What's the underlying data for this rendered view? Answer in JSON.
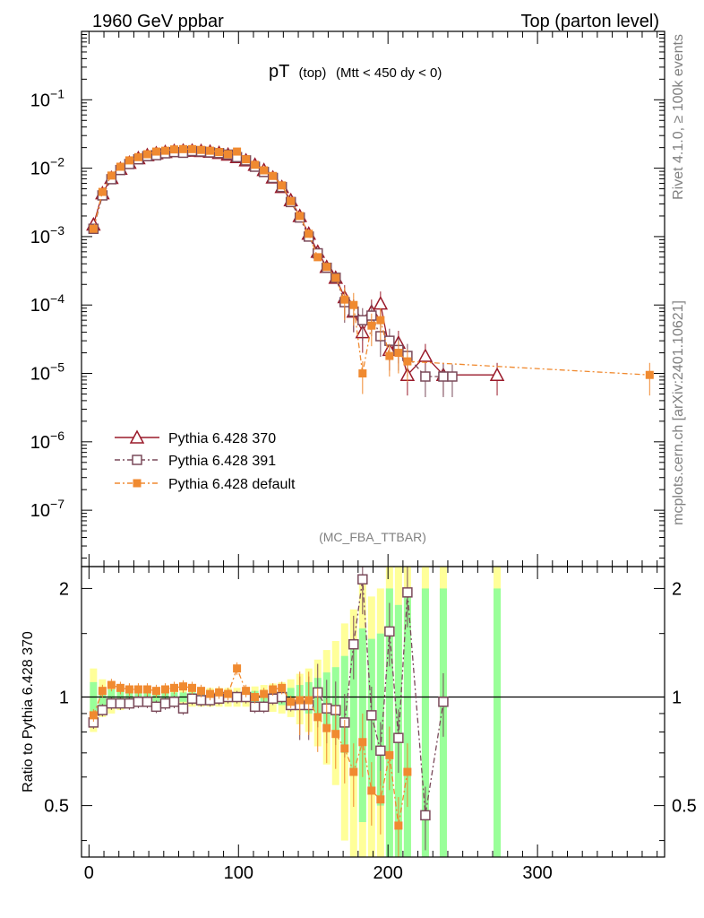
{
  "header": {
    "left": "1960 GeV ppbar",
    "right": "Top (parton level)"
  },
  "side": {
    "rivet": "Rivet 4.1.0, ≥ 100k events",
    "mcplots": "mcplots.cern.ch [arXiv:2401.10621]"
  },
  "watermark": "(MC_FBA_TTBAR)",
  "colors": {
    "p370": "#9a1a2a",
    "p391": "#7a4a5a",
    "pdef": "#f08a30",
    "band_inner": "#99ff99",
    "band_outer": "#ffff99"
  },
  "chart_data": [
    {
      "type": "line",
      "title": "pT (top) (Mtt < 450 dy < 0)",
      "title_main": "pT",
      "title_sub1": "(top)",
      "title_sub2": "(Mtt < 450 dy < 0)",
      "yscale": "log",
      "ylim": [
        1.5e-08,
        1.0
      ],
      "xlim": [
        -5,
        385
      ],
      "yticks": [
        {
          "value": 1e-07,
          "base": "10",
          "exp": "−7"
        },
        {
          "value": 1e-06,
          "base": "10",
          "exp": "−6"
        },
        {
          "value": 1e-05,
          "base": "10",
          "exp": "−5"
        },
        {
          "value": 0.0001,
          "base": "10",
          "exp": "−4"
        },
        {
          "value": 0.001,
          "base": "10",
          "exp": "−3"
        },
        {
          "value": 0.01,
          "base": "10",
          "exp": "−2"
        },
        {
          "value": 0.1,
          "base": "10",
          "exp": "−1"
        }
      ],
      "legend_position": "lower-left",
      "series": [
        {
          "name": "Pythia 6.428 370",
          "marker": "triangle",
          "x": [
            3,
            9,
            15,
            21,
            27,
            33,
            39,
            45,
            51,
            57,
            63,
            69,
            75,
            81,
            87,
            93,
            99,
            105,
            111,
            117,
            123,
            129,
            135,
            141,
            147,
            153,
            159,
            165,
            171,
            177,
            183,
            189,
            195,
            201,
            207,
            213,
            225,
            237,
            273
          ],
          "y": [
            0.0015,
            0.0043,
            0.0072,
            0.0098,
            0.012,
            0.014,
            0.0155,
            0.0165,
            0.0172,
            0.0178,
            0.018,
            0.018,
            0.0178,
            0.0174,
            0.0167,
            0.0158,
            0.0145,
            0.013,
            0.0112,
            0.0094,
            0.0073,
            0.0053,
            0.0034,
            0.002,
            0.0011,
            0.0006,
            0.00036,
            0.00025,
            0.00013,
            8e-05,
            4e-05,
            8e-05,
            0.000105,
            2.2e-05,
            2.8e-05,
            9.5e-06,
            1.8e-05,
            9.5e-06,
            9.5e-06
          ]
        },
        {
          "name": "Pythia 6.428 391",
          "marker": "square",
          "x": [
            3,
            9,
            15,
            21,
            27,
            33,
            39,
            45,
            51,
            57,
            63,
            69,
            75,
            81,
            87,
            93,
            99,
            105,
            111,
            117,
            123,
            129,
            135,
            141,
            147,
            153,
            159,
            165,
            171,
            177,
            183,
            189,
            195,
            201,
            207,
            213,
            225,
            237,
            243
          ],
          "y": [
            0.0013,
            0.004,
            0.0069,
            0.0094,
            0.0115,
            0.0135,
            0.015,
            0.0155,
            0.0165,
            0.0172,
            0.0168,
            0.0178,
            0.0175,
            0.017,
            0.0166,
            0.0158,
            0.0145,
            0.013,
            0.0105,
            0.0088,
            0.0072,
            0.0053,
            0.0032,
            0.0019,
            0.001,
            0.00057,
            0.00035,
            0.00025,
            0.00011,
            8e-05,
            6e-05,
            7e-05,
            3.5e-05,
            3e-05,
            2.2e-05,
            1.8e-05,
            9e-06,
            9e-06,
            9e-06
          ]
        },
        {
          "name": "Pythia 6.428 default",
          "marker": "filled-square",
          "x": [
            3,
            9,
            15,
            21,
            27,
            33,
            39,
            45,
            51,
            57,
            63,
            69,
            75,
            81,
            87,
            93,
            99,
            105,
            111,
            117,
            123,
            129,
            135,
            141,
            147,
            153,
            159,
            165,
            171,
            177,
            183,
            189,
            195,
            201,
            207,
            213,
            375
          ],
          "y": [
            0.0013,
            0.0045,
            0.0078,
            0.0105,
            0.013,
            0.0145,
            0.016,
            0.0175,
            0.018,
            0.0188,
            0.019,
            0.019,
            0.0185,
            0.018,
            0.0172,
            0.016,
            0.0175,
            0.0135,
            0.0112,
            0.0093,
            0.0077,
            0.0056,
            0.0033,
            0.002,
            0.0011,
            0.0005,
            0.00036,
            0.00025,
            0.00012,
            0.0001,
            1e-05,
            5e-05,
            6e-05,
            1.8e-05,
            2e-05,
            1.5e-05,
            9.5e-06
          ]
        }
      ]
    },
    {
      "type": "line",
      "ylabel": "Ratio to Pythia 6.428 370",
      "ylim": [
        0.36,
        2.3
      ],
      "xlim": [
        -5,
        385
      ],
      "yticks": [
        0.5,
        1,
        2
      ],
      "ytick_labels": [
        "0.5",
        "1",
        "2"
      ],
      "xticks": [
        0,
        100,
        200,
        300
      ],
      "xtick_labels": [
        "0",
        "100",
        "200",
        "300"
      ],
      "reference": 1,
      "band": {
        "x": [
          3,
          9,
          15,
          21,
          27,
          33,
          39,
          45,
          51,
          57,
          63,
          69,
          75,
          81,
          87,
          93,
          99,
          105,
          111,
          117,
          123,
          129,
          135,
          141,
          147,
          153,
          159,
          165,
          171,
          177,
          183,
          189,
          195,
          201,
          207,
          213,
          225,
          237,
          273
        ],
        "inner": [
          0.1,
          0.06,
          0.05,
          0.04,
          0.04,
          0.03,
          0.03,
          0.03,
          0.03,
          0.03,
          0.03,
          0.03,
          0.03,
          0.03,
          0.03,
          0.03,
          0.03,
          0.03,
          0.04,
          0.04,
          0.04,
          0.05,
          0.06,
          0.08,
          0.1,
          0.13,
          0.17,
          0.21,
          0.3,
          0.38,
          0.55,
          0.45,
          0.5,
          1.0,
          0.8,
          1.0,
          1.0,
          1.0,
          1.0
        ],
        "outer": [
          0.2,
          0.12,
          0.1,
          0.08,
          0.07,
          0.06,
          0.06,
          0.06,
          0.06,
          0.06,
          0.06,
          0.06,
          0.06,
          0.06,
          0.06,
          0.06,
          0.06,
          0.06,
          0.07,
          0.08,
          0.09,
          0.1,
          0.12,
          0.16,
          0.2,
          0.27,
          0.35,
          0.43,
          0.6,
          0.75,
          1.1,
          0.9,
          1.0,
          2.0,
          1.6,
          2.0,
          2.0,
          2.0,
          2.0
        ]
      },
      "series": [
        {
          "name": "Pythia 6.428 391",
          "marker": "square",
          "x": [
            3,
            9,
            15,
            21,
            27,
            33,
            39,
            45,
            51,
            57,
            63,
            69,
            75,
            81,
            87,
            93,
            99,
            105,
            111,
            117,
            123,
            129,
            135,
            141,
            147,
            153,
            159,
            165,
            171,
            177,
            183,
            189,
            195,
            201,
            207,
            213,
            225,
            237
          ],
          "y": [
            0.85,
            0.92,
            0.96,
            0.96,
            0.96,
            0.97,
            0.97,
            0.94,
            0.96,
            0.97,
            0.93,
            0.99,
            0.98,
            0.98,
            0.99,
            1.0,
            1.0,
            1.0,
            0.94,
            0.94,
            0.99,
            1.0,
            0.95,
            0.95,
            0.95,
            1.03,
            0.93,
            0.92,
            0.85,
            1.4,
            2.12,
            0.89,
            0.71,
            1.52,
            0.77,
            1.95,
            0.47,
            0.97
          ]
        },
        {
          "name": "Pythia 6.428 default",
          "marker": "filled-square",
          "x": [
            3,
            9,
            15,
            21,
            27,
            33,
            39,
            45,
            51,
            57,
            63,
            69,
            75,
            81,
            87,
            93,
            99,
            105,
            111,
            117,
            123,
            129,
            135,
            141,
            147,
            153,
            159,
            165,
            171,
            177,
            183,
            189,
            195,
            201,
            207,
            213
          ],
          "y": [
            0.89,
            1.04,
            1.08,
            1.06,
            1.05,
            1.05,
            1.05,
            1.04,
            1.05,
            1.06,
            1.07,
            1.06,
            1.04,
            1.02,
            1.03,
            1.02,
            1.2,
            1.04,
            1.0,
            1.02,
            1.05,
            1.06,
            0.97,
            0.98,
            0.98,
            0.88,
            0.82,
            0.79,
            0.72,
            0.62,
            0.75,
            0.55,
            0.52,
            0.69,
            0.44,
            0.62
          ]
        }
      ]
    }
  ]
}
